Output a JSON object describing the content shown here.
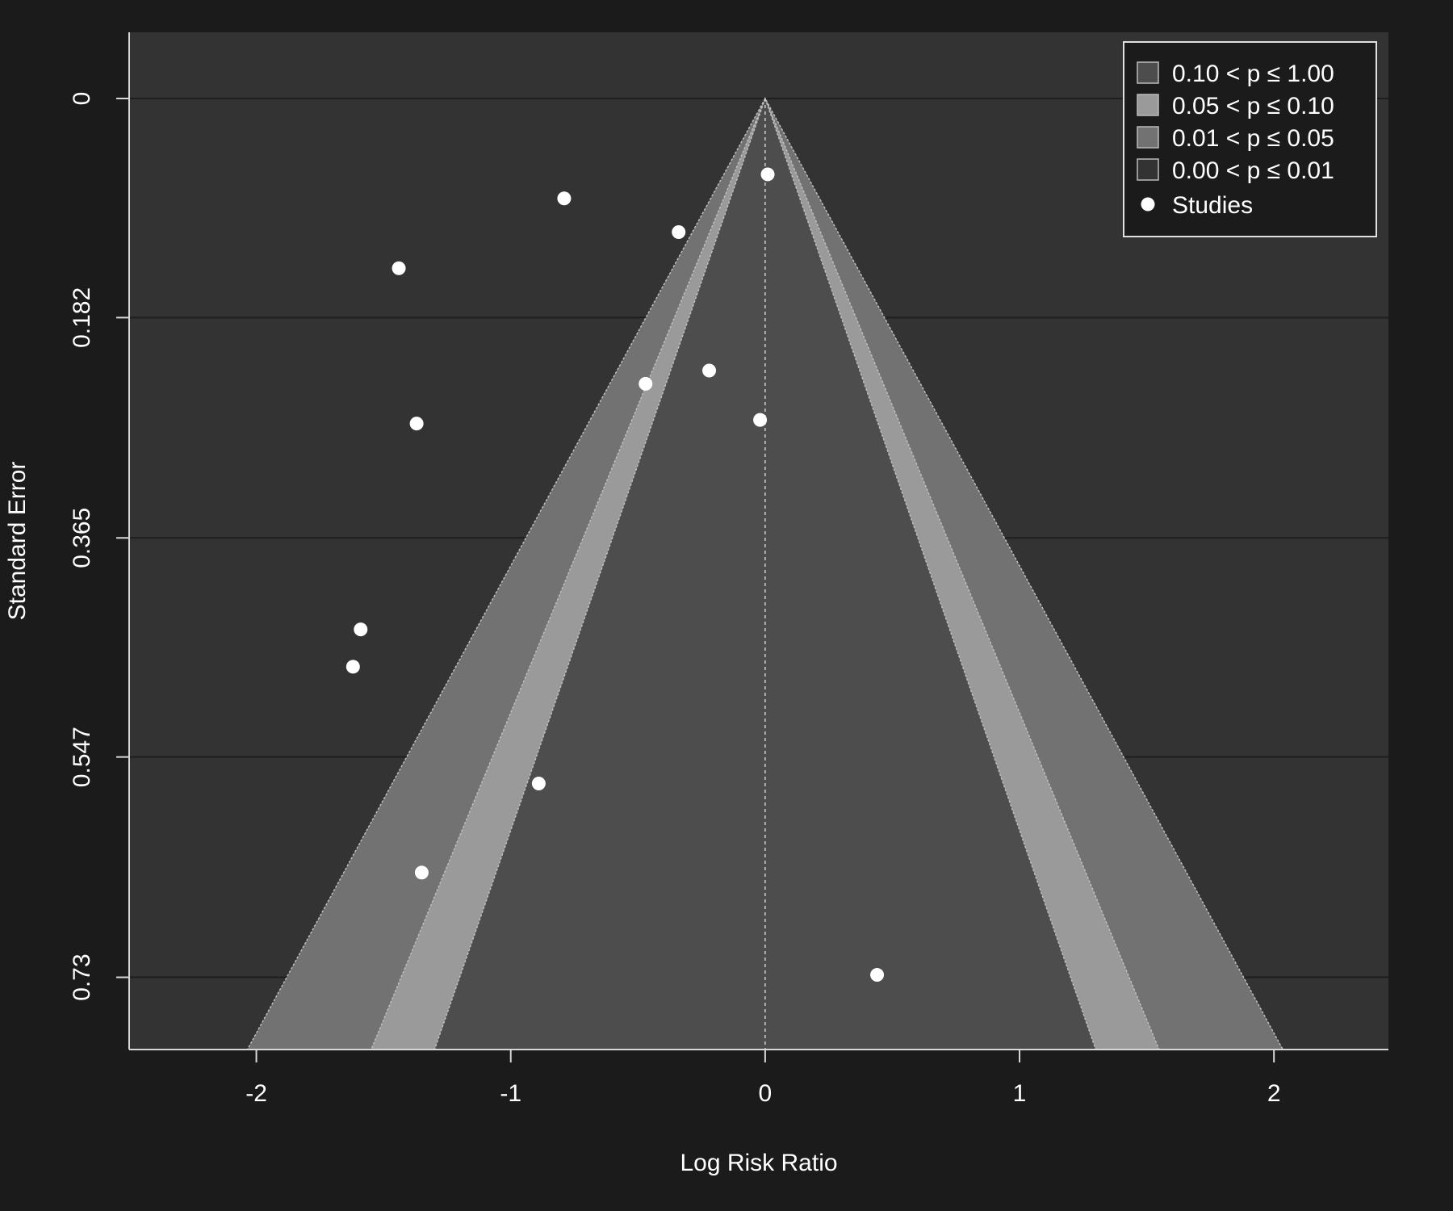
{
  "chart_data": {
    "type": "scatter",
    "subtype": "contour-enhanced funnel plot",
    "xlabel": "Log Risk Ratio",
    "ylabel": "Standard Error",
    "xlim": [
      -2.5,
      2.45
    ],
    "ylim": [
      0.79,
      -0.055
    ],
    "y_reversed": true,
    "x_ticks": [
      -2,
      -1,
      0,
      1,
      2
    ],
    "x_tick_labels": [
      "-2",
      "-1",
      "0",
      "1",
      "2"
    ],
    "y_ticks": [
      0,
      0.182,
      0.365,
      0.547,
      0.73
    ],
    "y_tick_labels": [
      "0",
      "0.182",
      "0.365",
      "0.547",
      "0.73"
    ],
    "grid": "horizontal",
    "legend_position": "top-right",
    "legend": [
      {
        "label": "0.10 < p ≤ 1.00",
        "marker": "square",
        "color": "#4d4d4d"
      },
      {
        "label": "0.05 < p ≤ 0.10",
        "marker": "square",
        "color": "#9a9a9a"
      },
      {
        "label": "0.01 < p ≤ 0.05",
        "marker": "square",
        "color": "#727272"
      },
      {
        "label": "0.00 < p ≤ 0.01",
        "marker": "square",
        "color": "#333333"
      },
      {
        "label": "Studies",
        "marker": "circle",
        "color": "#ffffff"
      }
    ],
    "contours": [
      {
        "z": 2.576,
        "color": "#727272"
      },
      {
        "z": 1.96,
        "color": "#9a9a9a"
      },
      {
        "z": 1.645,
        "color": "#4d4d4d"
      }
    ],
    "reference_line_x": 0,
    "studies": [
      {
        "x": 0.01,
        "y": 0.063
      },
      {
        "x": -0.79,
        "y": 0.083
      },
      {
        "x": -0.34,
        "y": 0.111
      },
      {
        "x": -1.44,
        "y": 0.141
      },
      {
        "x": -0.22,
        "y": 0.226
      },
      {
        "x": -0.47,
        "y": 0.237
      },
      {
        "x": -0.02,
        "y": 0.267
      },
      {
        "x": -1.37,
        "y": 0.27
      },
      {
        "x": -1.59,
        "y": 0.441
      },
      {
        "x": -1.62,
        "y": 0.472
      },
      {
        "x": -0.89,
        "y": 0.569
      },
      {
        "x": -1.35,
        "y": 0.643
      },
      {
        "x": 0.44,
        "y": 0.728
      }
    ]
  },
  "colors": {
    "page_background": "#1b1b1b",
    "plot_background": "#333333",
    "gridline": "#1e1e1e",
    "axis": "#d8d8d8",
    "text": "#ffffff",
    "points": "#ffffff"
  }
}
